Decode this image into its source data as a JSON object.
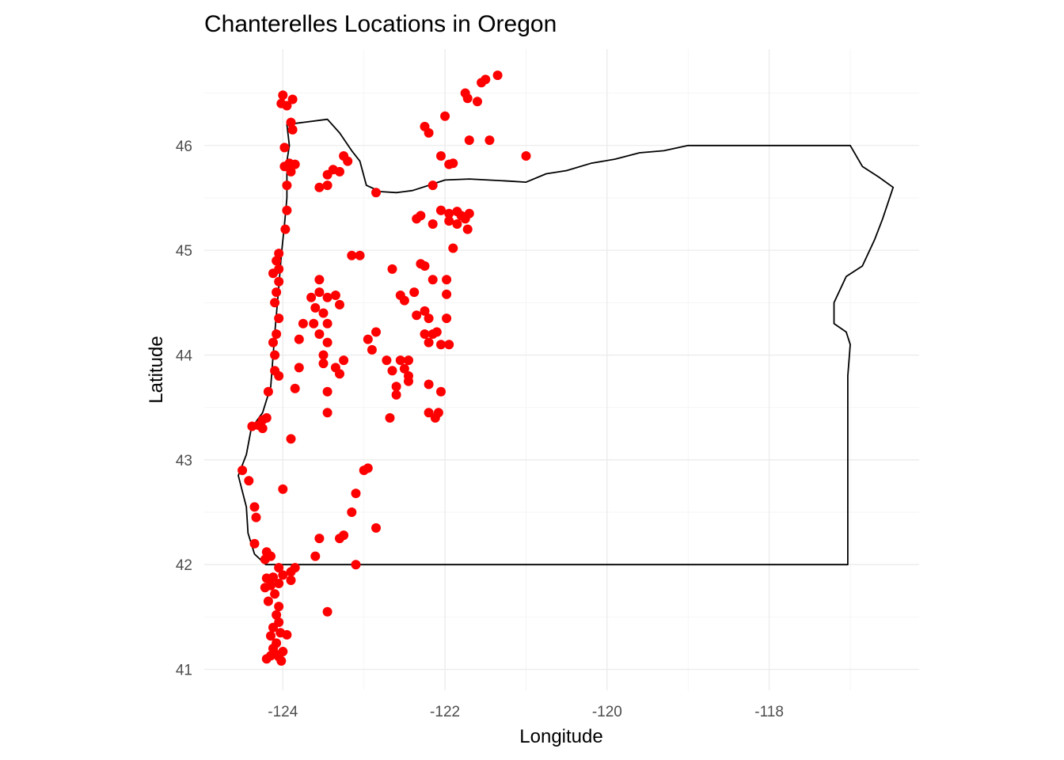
{
  "chart_data": {
    "type": "scatter",
    "title": "Chanterelles Locations in Oregon",
    "xlabel": "Longitude",
    "ylabel": "Latitude",
    "xlim": [
      -124.97,
      -116.15
    ],
    "ylim": [
      40.8,
      46.92
    ],
    "x_ticks": [
      -124,
      -122,
      -120,
      -118
    ],
    "x_tick_labels": [
      "-124",
      "-122",
      "-120",
      "-118"
    ],
    "y_ticks": [
      41,
      42,
      43,
      44,
      45,
      46
    ],
    "y_tick_labels": [
      "41",
      "42",
      "43",
      "44",
      "45",
      "46"
    ],
    "grid": true,
    "point_color": "#ff0000",
    "outline_color": "#000000",
    "state_outline": [
      [
        -124.21,
        42.0
      ],
      [
        -124.35,
        42.1
      ],
      [
        -124.43,
        42.3
      ],
      [
        -124.45,
        42.55
      ],
      [
        -124.55,
        42.85
      ],
      [
        -124.45,
        43.05
      ],
      [
        -124.39,
        43.3
      ],
      [
        -124.25,
        43.45
      ],
      [
        -124.15,
        43.7
      ],
      [
        -124.12,
        44.0
      ],
      [
        -124.09,
        44.3
      ],
      [
        -124.05,
        44.65
      ],
      [
        -124.02,
        44.95
      ],
      [
        -123.98,
        45.25
      ],
      [
        -123.95,
        45.5
      ],
      [
        -123.95,
        45.85
      ],
      [
        -123.92,
        46.0
      ],
      [
        -123.95,
        46.2
      ],
      [
        -123.75,
        46.22
      ],
      [
        -123.45,
        46.25
      ],
      [
        -123.3,
        46.12
      ],
      [
        -123.15,
        45.95
      ],
      [
        -123.05,
        45.85
      ],
      [
        -122.97,
        45.62
      ],
      [
        -122.8,
        45.56
      ],
      [
        -122.6,
        45.55
      ],
      [
        -122.4,
        45.57
      ],
      [
        -122.2,
        45.62
      ],
      [
        -122.0,
        45.67
      ],
      [
        -121.7,
        45.68
      ],
      [
        -121.2,
        45.66
      ],
      [
        -121.0,
        45.65
      ],
      [
        -120.75,
        45.73
      ],
      [
        -120.5,
        45.76
      ],
      [
        -120.2,
        45.83
      ],
      [
        -119.9,
        45.87
      ],
      [
        -119.6,
        45.93
      ],
      [
        -119.3,
        45.95
      ],
      [
        -119.0,
        46.0
      ],
      [
        -118.5,
        46.0
      ],
      [
        -118.0,
        46.0
      ],
      [
        -117.5,
        46.0
      ],
      [
        -117.0,
        46.0
      ],
      [
        -116.85,
        45.8
      ],
      [
        -116.65,
        45.7
      ],
      [
        -116.47,
        45.6
      ],
      [
        -116.6,
        45.3
      ],
      [
        -116.7,
        45.1
      ],
      [
        -116.85,
        44.85
      ],
      [
        -117.05,
        44.75
      ],
      [
        -117.2,
        44.5
      ],
      [
        -117.2,
        44.3
      ],
      [
        -117.05,
        44.22
      ],
      [
        -117.0,
        44.1
      ],
      [
        -117.03,
        43.8
      ],
      [
        -117.03,
        43.0
      ],
      [
        -117.03,
        42.0
      ],
      [
        -118.0,
        42.0
      ],
      [
        -120.0,
        42.0
      ],
      [
        -121.0,
        42.0
      ],
      [
        -122.0,
        42.0
      ],
      [
        -123.0,
        42.0
      ],
      [
        -124.21,
        42.0
      ]
    ],
    "points": [
      [
        -124.0,
        46.48
      ],
      [
        -123.95,
        46.38
      ],
      [
        -123.88,
        46.44
      ],
      [
        -124.02,
        46.4
      ],
      [
        -123.9,
        46.22
      ],
      [
        -123.88,
        46.15
      ],
      [
        -123.98,
        45.98
      ],
      [
        -123.92,
        45.83
      ],
      [
        -123.85,
        45.82
      ],
      [
        -123.98,
        45.8
      ],
      [
        -123.9,
        45.75
      ],
      [
        -123.95,
        45.62
      ],
      [
        -123.95,
        45.38
      ],
      [
        -123.97,
        45.2
      ],
      [
        -124.05,
        44.97
      ],
      [
        -124.08,
        44.9
      ],
      [
        -124.05,
        44.82
      ],
      [
        -124.12,
        44.78
      ],
      [
        -124.05,
        44.7
      ],
      [
        -124.08,
        44.6
      ],
      [
        -124.1,
        44.5
      ],
      [
        -124.05,
        44.35
      ],
      [
        -124.08,
        44.2
      ],
      [
        -124.12,
        44.12
      ],
      [
        -124.1,
        44.0
      ],
      [
        -124.1,
        43.85
      ],
      [
        -124.05,
        43.8
      ],
      [
        -124.18,
        43.65
      ],
      [
        -124.2,
        43.4
      ],
      [
        -124.25,
        43.38
      ],
      [
        -124.3,
        43.33
      ],
      [
        -124.38,
        43.32
      ],
      [
        -124.25,
        43.3
      ],
      [
        -123.9,
        43.2
      ],
      [
        -124.5,
        42.9
      ],
      [
        -124.42,
        42.8
      ],
      [
        -124.0,
        42.72
      ],
      [
        -124.35,
        42.55
      ],
      [
        -124.33,
        42.45
      ],
      [
        -124.35,
        42.2
      ],
      [
        -124.2,
        42.12
      ],
      [
        -124.15,
        42.08
      ],
      [
        -124.22,
        42.05
      ],
      [
        -124.05,
        41.97
      ],
      [
        -124.0,
        41.9
      ],
      [
        -123.9,
        41.93
      ],
      [
        -123.85,
        41.97
      ],
      [
        -124.12,
        41.88
      ],
      [
        -124.2,
        41.87
      ],
      [
        -124.05,
        41.82
      ],
      [
        -124.15,
        41.8
      ],
      [
        -123.9,
        41.85
      ],
      [
        -124.22,
        41.78
      ],
      [
        -124.1,
        41.72
      ],
      [
        -124.18,
        41.65
      ],
      [
        -124.05,
        41.6
      ],
      [
        -124.08,
        41.52
      ],
      [
        -124.05,
        41.45
      ],
      [
        -124.12,
        41.4
      ],
      [
        -124.03,
        41.35
      ],
      [
        -124.15,
        41.32
      ],
      [
        -123.95,
        41.33
      ],
      [
        -124.08,
        41.25
      ],
      [
        -124.12,
        41.2
      ],
      [
        -124.0,
        41.17
      ],
      [
        -124.15,
        41.13
      ],
      [
        -124.05,
        41.12
      ],
      [
        -124.2,
        41.1
      ],
      [
        -124.02,
        41.08
      ],
      [
        -124.1,
        41.15
      ],
      [
        -123.55,
        45.6
      ],
      [
        -123.45,
        45.62
      ],
      [
        -123.45,
        45.72
      ],
      [
        -123.38,
        45.77
      ],
      [
        -123.3,
        45.75
      ],
      [
        -123.2,
        45.85
      ],
      [
        -123.25,
        45.9
      ],
      [
        -122.85,
        45.55
      ],
      [
        -123.05,
        44.95
      ],
      [
        -123.65,
        44.55
      ],
      [
        -123.55,
        44.6
      ],
      [
        -123.45,
        44.55
      ],
      [
        -123.6,
        44.45
      ],
      [
        -123.5,
        44.4
      ],
      [
        -123.62,
        44.3
      ],
      [
        -123.45,
        44.3
      ],
      [
        -123.55,
        44.2
      ],
      [
        -123.45,
        44.12
      ],
      [
        -123.5,
        44.0
      ],
      [
        -123.75,
        44.3
      ],
      [
        -123.8,
        44.15
      ],
      [
        -123.55,
        44.72
      ],
      [
        -123.35,
        44.57
      ],
      [
        -123.3,
        44.48
      ],
      [
        -123.8,
        43.88
      ],
      [
        -123.45,
        43.65
      ],
      [
        -123.35,
        43.88
      ],
      [
        -123.25,
        43.95
      ],
      [
        -123.5,
        43.92
      ],
      [
        -123.3,
        43.82
      ],
      [
        -123.45,
        43.45
      ],
      [
        -123.85,
        43.68
      ],
      [
        -122.95,
        44.15
      ],
      [
        -122.9,
        44.05
      ],
      [
        -122.85,
        44.22
      ],
      [
        -122.72,
        43.95
      ],
      [
        -122.65,
        43.85
      ],
      [
        -122.55,
        43.95
      ],
      [
        -122.5,
        43.87
      ],
      [
        -122.45,
        43.95
      ],
      [
        -122.6,
        43.7
      ],
      [
        -122.45,
        43.75
      ],
      [
        -122.6,
        43.62
      ],
      [
        -122.45,
        43.8
      ],
      [
        -122.68,
        43.4
      ],
      [
        -122.65,
        44.82
      ],
      [
        -122.55,
        44.57
      ],
      [
        -122.5,
        44.52
      ],
      [
        -122.38,
        44.6
      ],
      [
        -122.35,
        44.38
      ],
      [
        -122.25,
        44.42
      ],
      [
        -122.2,
        44.35
      ],
      [
        -122.25,
        44.2
      ],
      [
        -122.2,
        44.12
      ],
      [
        -122.1,
        44.22
      ],
      [
        -122.05,
        44.1
      ],
      [
        -121.95,
        44.1
      ],
      [
        -121.98,
        44.35
      ],
      [
        -122.15,
        44.2
      ],
      [
        -122.2,
        43.72
      ],
      [
        -122.2,
        43.45
      ],
      [
        -122.12,
        43.4
      ],
      [
        -122.08,
        43.45
      ],
      [
        -122.05,
        43.65
      ],
      [
        -122.3,
        44.87
      ],
      [
        -122.25,
        44.85
      ],
      [
        -122.15,
        44.72
      ],
      [
        -121.98,
        44.72
      ],
      [
        -121.98,
        44.58
      ],
      [
        -122.05,
        45.38
      ],
      [
        -121.95,
        45.35
      ],
      [
        -121.85,
        45.37
      ],
      [
        -121.8,
        45.33
      ],
      [
        -121.75,
        45.3
      ],
      [
        -121.7,
        45.35
      ],
      [
        -121.85,
        45.25
      ],
      [
        -121.95,
        45.28
      ],
      [
        -121.72,
        45.2
      ],
      [
        -121.9,
        45.02
      ],
      [
        -122.15,
        45.25
      ],
      [
        -122.05,
        45.38
      ],
      [
        -122.3,
        45.33
      ],
      [
        -122.35,
        45.3
      ],
      [
        -122.15,
        45.62
      ],
      [
        -122.25,
        46.18
      ],
      [
        -122.2,
        46.12
      ],
      [
        -122.0,
        46.28
      ],
      [
        -121.95,
        45.82
      ],
      [
        -121.9,
        45.83
      ],
      [
        -122.05,
        45.9
      ],
      [
        -121.7,
        46.05
      ],
      [
        -121.45,
        46.05
      ],
      [
        -121.0,
        45.9
      ],
      [
        -121.75,
        46.5
      ],
      [
        -121.72,
        46.45
      ],
      [
        -121.6,
        46.42
      ],
      [
        -121.55,
        46.6
      ],
      [
        -121.5,
        46.63
      ],
      [
        -121.35,
        46.67
      ],
      [
        -123.1,
        42.0
      ],
      [
        -123.3,
        42.25
      ],
      [
        -123.25,
        42.28
      ],
      [
        -123.1,
        42.68
      ],
      [
        -123.0,
        42.9
      ],
      [
        -122.95,
        42.92
      ],
      [
        -122.85,
        42.35
      ],
      [
        -123.15,
        42.5
      ],
      [
        -123.55,
        42.25
      ],
      [
        -123.45,
        41.55
      ],
      [
        -123.6,
        42.08
      ],
      [
        -123.15,
        44.95
      ]
    ]
  }
}
